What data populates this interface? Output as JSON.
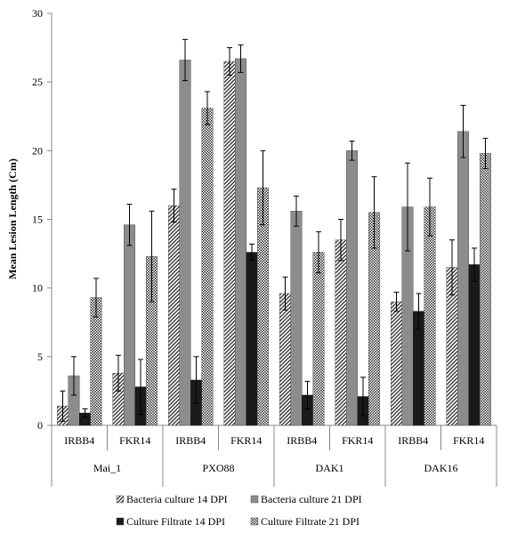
{
  "chart_data": {
    "type": "bar",
    "ylabel": "Mean Lesion Length (Cm)",
    "ylim": [
      0,
      30
    ],
    "yticks": [
      0,
      5,
      10,
      15,
      20,
      25,
      30
    ],
    "groups": [
      {
        "label": "Mai_1",
        "categories": [
          "IRBB4",
          "FKR14"
        ]
      },
      {
        "label": "PXO88",
        "categories": [
          "IRBB4",
          "FKR14"
        ]
      },
      {
        "label": "DAK1",
        "categories": [
          "IRBB4",
          "FKR14"
        ]
      },
      {
        "label": "DAK16",
        "categories": [
          "IRBB4",
          "FKR14"
        ]
      }
    ],
    "series": [
      {
        "name": "Bacteria culture 14 DPI",
        "pattern": "diagonal-hatch",
        "color": "#ffffff",
        "values": [
          1.4,
          3.8,
          16.0,
          26.5,
          9.6,
          13.5,
          9.0,
          11.5
        ],
        "errors": [
          1.1,
          1.3,
          1.2,
          1.0,
          1.2,
          1.5,
          0.7,
          2.0
        ]
      },
      {
        "name": "Bacteria culture 21 DPI",
        "pattern": "solid-gray",
        "color": "#8c8c8c",
        "values": [
          3.6,
          14.6,
          26.6,
          26.7,
          15.6,
          20.0,
          15.9,
          21.4
        ],
        "errors": [
          1.4,
          1.5,
          1.5,
          1.0,
          1.1,
          0.7,
          3.2,
          1.9
        ]
      },
      {
        "name": "Culture Filtrate 14 DPI",
        "pattern": "solid-dark",
        "color": "#1a1a1a",
        "values": [
          0.9,
          2.8,
          3.3,
          12.6,
          2.2,
          2.1,
          8.3,
          11.7
        ],
        "errors": [
          0.3,
          2.0,
          1.7,
          0.6,
          1.0,
          1.4,
          1.3,
          1.2
        ]
      },
      {
        "name": "Culture Filtrate 21 DPI",
        "pattern": "checker",
        "color": "#ffffff",
        "values": [
          9.3,
          12.3,
          23.1,
          17.3,
          12.6,
          15.5,
          15.9,
          19.8
        ],
        "errors": [
          1.4,
          3.3,
          1.2,
          2.7,
          1.5,
          2.6,
          2.1,
          1.1
        ]
      }
    ],
    "legend": {
      "position": "bottom"
    }
  }
}
